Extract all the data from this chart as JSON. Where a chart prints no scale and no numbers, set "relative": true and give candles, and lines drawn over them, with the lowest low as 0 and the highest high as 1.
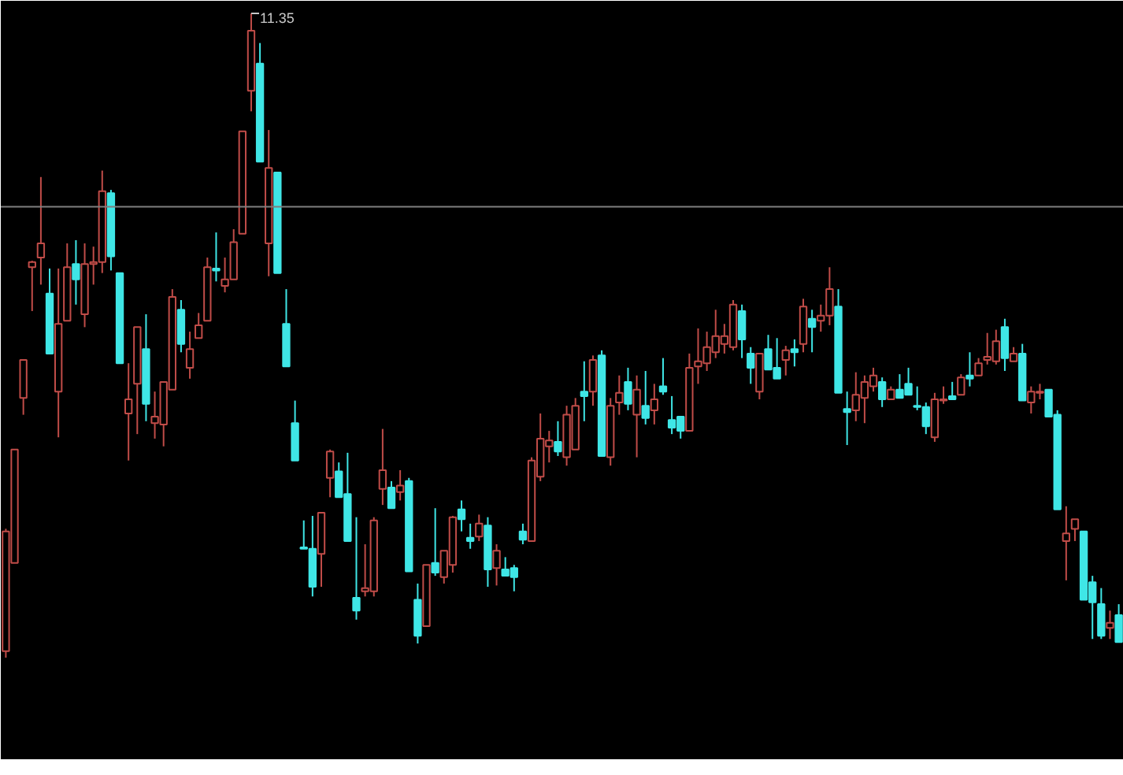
{
  "chart_data": {
    "type": "candlestick",
    "relative": true,
    "categories": [
      null,
      null,
      null,
      null,
      null,
      null,
      null,
      null,
      null,
      null,
      null,
      null,
      null,
      null,
      null,
      null,
      null,
      null,
      null,
      null,
      null,
      null,
      null,
      null,
      null,
      null,
      null,
      null,
      null,
      null,
      null,
      null,
      null,
      null,
      null,
      null,
      null,
      null,
      null,
      null,
      null,
      null,
      null,
      null,
      null,
      null,
      null,
      null,
      null,
      null,
      null,
      null,
      null,
      null,
      null,
      null,
      null,
      null,
      null,
      null,
      null,
      null,
      null,
      null,
      null,
      null,
      null,
      null,
      null,
      null,
      null,
      null,
      null,
      null,
      null,
      null,
      null,
      null,
      null,
      null,
      null,
      null,
      null,
      null,
      null,
      null,
      null,
      null,
      null,
      null,
      null,
      null,
      null,
      null,
      null,
      null,
      null,
      null,
      null,
      null,
      null,
      null,
      null,
      null,
      null,
      null,
      null,
      null,
      null,
      null,
      null,
      null,
      null,
      null,
      null,
      null,
      null,
      null,
      null,
      null,
      null,
      null,
      null,
      null,
      null,
      null,
      null,
      null
    ],
    "ohlc": [
      [
        0.01,
        0.2,
        0.0,
        0.196
      ],
      [
        0.147,
        0.323,
        0.147,
        0.323
      ],
      [
        0.403,
        0.462,
        0.377,
        0.462
      ],
      [
        0.606,
        0.616,
        0.538,
        0.614
      ],
      [
        0.621,
        0.746,
        0.579,
        0.643
      ],
      [
        0.565,
        0.604,
        0.472,
        0.472
      ],
      [
        0.413,
        0.604,
        0.342,
        0.518
      ],
      [
        0.523,
        0.643,
        0.523,
        0.606
      ],
      [
        0.611,
        0.648,
        0.548,
        0.587
      ],
      [
        0.533,
        0.643,
        0.513,
        0.611
      ],
      [
        0.611,
        0.638,
        0.579,
        0.614
      ],
      [
        0.614,
        0.756,
        0.597,
        0.724
      ],
      [
        0.721,
        0.726,
        0.601,
        0.623
      ],
      [
        0.597,
        0.597,
        0.457,
        0.457
      ],
      [
        0.379,
        0.457,
        0.306,
        0.401
      ],
      [
        0.425,
        0.513,
        0.347,
        0.513
      ],
      [
        0.479,
        0.533,
        0.367,
        0.394
      ],
      [
        0.364,
        0.413,
        0.34,
        0.374
      ],
      [
        0.362,
        0.428,
        0.328,
        0.428
      ],
      [
        0.416,
        0.572,
        0.416,
        0.56
      ],
      [
        0.54,
        0.555,
        0.474,
        0.487
      ],
      [
        0.45,
        0.506,
        0.433,
        0.479
      ],
      [
        0.496,
        0.535,
        0.496,
        0.516
      ],
      [
        0.523,
        0.621,
        0.523,
        0.606
      ],
      [
        0.604,
        0.66,
        0.584,
        0.601
      ],
      [
        0.577,
        0.621,
        0.567,
        0.587
      ],
      [
        0.587,
        0.665,
        0.587,
        0.645
      ],
      [
        0.658,
        0.817,
        0.658,
        0.817
      ],
      [
        0.88,
        1.0,
        0.848,
        0.973
      ],
      [
        0.922,
        0.954,
        0.77,
        0.77
      ],
      [
        0.643,
        0.819,
        0.592,
        0.76
      ],
      [
        0.753,
        0.753,
        0.597,
        0.597
      ],
      [
        0.518,
        0.572,
        0.452,
        0.452
      ],
      [
        0.364,
        0.399,
        0.306,
        0.306
      ],
      [
        0.171,
        0.213,
        0.169,
        0.169
      ],
      [
        0.169,
        0.22,
        0.095,
        0.11
      ],
      [
        0.161,
        0.225,
        0.11,
        0.225
      ],
      [
        0.279,
        0.323,
        0.249,
        0.32
      ],
      [
        0.289,
        0.303,
        0.249,
        0.249
      ],
      [
        0.254,
        0.318,
        0.181,
        0.181
      ],
      [
        0.093,
        0.218,
        0.059,
        0.073
      ],
      [
        0.103,
        0.176,
        0.095,
        0.108
      ],
      [
        0.103,
        0.218,
        0.095,
        0.213
      ],
      [
        0.262,
        0.355,
        0.237,
        0.291
      ],
      [
        0.264,
        0.274,
        0.232,
        0.232
      ],
      [
        0.257,
        0.291,
        0.244,
        0.267
      ],
      [
        0.274,
        0.279,
        0.134,
        0.134
      ],
      [
        0.09,
        0.115,
        0.022,
        0.034
      ],
      [
        0.049,
        0.144,
        0.049,
        0.144
      ],
      [
        0.147,
        0.232,
        0.127,
        0.132
      ],
      [
        0.125,
        0.166,
        0.115,
        0.166
      ],
      [
        0.144,
        0.22,
        0.132,
        0.218
      ],
      [
        0.23,
        0.244,
        0.196,
        0.215
      ],
      [
        0.186,
        0.208,
        0.169,
        0.181
      ],
      [
        0.188,
        0.222,
        0.181,
        0.208
      ],
      [
        0.205,
        0.218,
        0.11,
        0.137
      ],
      [
        0.139,
        0.176,
        0.112,
        0.166
      ],
      [
        0.137,
        0.156,
        0.127,
        0.127
      ],
      [
        0.139,
        0.144,
        0.103,
        0.125
      ],
      [
        0.196,
        0.208,
        0.176,
        0.183
      ],
      [
        0.181,
        0.311,
        0.181,
        0.306
      ],
      [
        0.281,
        0.379,
        0.274,
        0.34
      ],
      [
        0.328,
        0.352,
        0.303,
        0.337
      ],
      [
        0.335,
        0.367,
        0.313,
        0.32
      ],
      [
        0.311,
        0.391,
        0.298,
        0.377
      ],
      [
        0.323,
        0.403,
        0.323,
        0.391
      ],
      [
        0.413,
        0.46,
        0.367,
        0.406
      ],
      [
        0.413,
        0.469,
        0.391,
        0.462
      ],
      [
        0.469,
        0.477,
        0.313,
        0.313
      ],
      [
        0.311,
        0.403,
        0.298,
        0.391
      ],
      [
        0.396,
        0.438,
        0.377,
        0.411
      ],
      [
        0.428,
        0.45,
        0.384,
        0.394
      ],
      [
        0.377,
        0.438,
        0.311,
        0.416
      ],
      [
        0.391,
        0.445,
        0.362,
        0.372
      ],
      [
        0.384,
        0.425,
        0.362,
        0.401
      ],
      [
        0.421,
        0.465,
        0.408,
        0.413
      ],
      [
        0.369,
        0.406,
        0.347,
        0.357
      ],
      [
        0.374,
        0.374,
        0.34,
        0.352
      ],
      [
        0.352,
        0.472,
        0.352,
        0.45
      ],
      [
        0.452,
        0.511,
        0.425,
        0.46
      ],
      [
        0.457,
        0.506,
        0.445,
        0.482
      ],
      [
        0.474,
        0.54,
        0.465,
        0.499
      ],
      [
        0.487,
        0.518,
        0.472,
        0.499
      ],
      [
        0.482,
        0.555,
        0.477,
        0.548
      ],
      [
        0.538,
        0.548,
        0.465,
        0.494
      ],
      [
        0.472,
        0.482,
        0.425,
        0.45
      ],
      [
        0.413,
        0.472,
        0.401,
        0.472
      ],
      [
        0.479,
        0.501,
        0.447,
        0.447
      ],
      [
        0.45,
        0.496,
        0.433,
        0.433
      ],
      [
        0.462,
        0.484,
        0.438,
        0.477
      ],
      [
        0.479,
        0.494,
        0.452,
        0.474
      ],
      [
        0.487,
        0.557,
        0.474,
        0.545
      ],
      [
        0.526,
        0.54,
        0.474,
        0.513
      ],
      [
        0.523,
        0.548,
        0.506,
        0.531
      ],
      [
        0.531,
        0.606,
        0.516,
        0.572
      ],
      [
        0.545,
        0.572,
        0.411,
        0.411
      ],
      [
        0.386,
        0.413,
        0.33,
        0.381
      ],
      [
        0.384,
        0.443,
        0.367,
        0.408
      ],
      [
        0.403,
        0.438,
        0.364,
        0.428
      ],
      [
        0.421,
        0.45,
        0.413,
        0.438
      ],
      [
        0.428,
        0.435,
        0.389,
        0.401
      ],
      [
        0.401,
        0.421,
        0.401,
        0.416
      ],
      [
        0.416,
        0.44,
        0.403,
        0.403
      ],
      [
        0.425,
        0.45,
        0.408,
        0.408
      ],
      [
        0.391,
        0.421,
        0.384,
        0.389
      ],
      [
        0.389,
        0.396,
        0.347,
        0.359
      ],
      [
        0.342,
        0.411,
        0.335,
        0.401
      ],
      [
        0.399,
        0.421,
        0.394,
        0.401
      ],
      [
        0.406,
        0.428,
        0.401,
        0.401
      ],
      [
        0.408,
        0.44,
        0.408,
        0.435
      ],
      [
        0.438,
        0.474,
        0.421,
        0.433
      ],
      [
        0.438,
        0.465,
        0.438,
        0.457
      ],
      [
        0.462,
        0.504,
        0.455,
        0.467
      ],
      [
        0.46,
        0.509,
        0.455,
        0.491
      ],
      [
        0.513,
        0.526,
        0.445,
        0.465
      ],
      [
        0.46,
        0.482,
        0.46,
        0.472
      ],
      [
        0.472,
        0.487,
        0.399,
        0.399
      ],
      [
        0.396,
        0.421,
        0.379,
        0.413
      ],
      [
        0.411,
        0.425,
        0.401,
        0.413
      ],
      [
        0.416,
        0.416,
        0.374,
        0.374
      ],
      [
        0.377,
        0.384,
        0.23,
        0.23
      ],
      [
        0.181,
        0.235,
        0.12,
        0.193
      ],
      [
        0.2,
        0.215,
        0.181,
        0.215
      ],
      [
        0.196,
        0.196,
        0.09,
        0.09
      ],
      [
        0.117,
        0.127,
        0.029,
        0.086
      ],
      [
        0.083,
        0.108,
        0.029,
        0.034
      ],
      [
        0.046,
        0.073,
        0.029,
        0.054
      ],
      [
        0.066,
        0.083,
        0.024,
        0.024
      ]
    ],
    "colors": [
      "#c04c48",
      "#c04c48",
      "#c04c48",
      "#c04c48",
      "#c04c48",
      "#3fe6e6",
      "#c04c48",
      "#c04c48",
      "#3fe6e6",
      "#c04c48",
      "#c04c48",
      "#c04c48",
      "#3fe6e6",
      "#3fe6e6",
      "#c04c48",
      "#c04c48",
      "#3fe6e6",
      "#c04c48",
      "#c04c48",
      "#c04c48",
      "#3fe6e6",
      "#c04c48",
      "#c04c48",
      "#c04c48",
      "#3fe6e6",
      "#c04c48",
      "#c04c48",
      "#c04c48",
      "#c04c48",
      "#3fe6e6",
      "#c04c48",
      "#3fe6e6",
      "#3fe6e6",
      "#3fe6e6",
      "#3fe6e6",
      "#3fe6e6",
      "#c04c48",
      "#c04c48",
      "#3fe6e6",
      "#3fe6e6",
      "#3fe6e6",
      "#c04c48",
      "#c04c48",
      "#c04c48",
      "#3fe6e6",
      "#c04c48",
      "#3fe6e6",
      "#3fe6e6",
      "#c04c48",
      "#3fe6e6",
      "#c04c48",
      "#c04c48",
      "#3fe6e6",
      "#3fe6e6",
      "#c04c48",
      "#3fe6e6",
      "#c04c48",
      "#3fe6e6",
      "#3fe6e6",
      "#3fe6e6",
      "#c04c48",
      "#c04c48",
      "#c04c48",
      "#3fe6e6",
      "#c04c48",
      "#c04c48",
      "#3fe6e6",
      "#c04c48",
      "#3fe6e6",
      "#c04c48",
      "#c04c48",
      "#3fe6e6",
      "#c04c48",
      "#3fe6e6",
      "#c04c48",
      "#3fe6e6",
      "#3fe6e6",
      "#3fe6e6",
      "#c04c48",
      "#c04c48",
      "#c04c48",
      "#c04c48",
      "#c04c48",
      "#c04c48",
      "#3fe6e6",
      "#3fe6e6",
      "#c04c48",
      "#3fe6e6",
      "#3fe6e6",
      "#c04c48",
      "#3fe6e6",
      "#c04c48",
      "#3fe6e6",
      "#c04c48",
      "#c04c48",
      "#3fe6e6",
      "#3fe6e6",
      "#c04c48",
      "#c04c48",
      "#c04c48",
      "#3fe6e6",
      "#c04c48",
      "#3fe6e6",
      "#3fe6e6",
      "#3fe6e6",
      "#3fe6e6",
      "#c04c48",
      "#c04c48",
      "#3fe6e6",
      "#c04c48",
      "#3fe6e6",
      "#c04c48",
      "#c04c48",
      "#c04c48",
      "#3fe6e6",
      "#c04c48",
      "#3fe6e6",
      "#c04c48",
      "#c04c48",
      "#3fe6e6",
      "#3fe6e6",
      "#c04c48",
      "#c04c48",
      "#3fe6e6",
      "#3fe6e6",
      "#3fe6e6",
      "#c04c48",
      "#3fe6e6"
    ],
    "annotations": [
      "11.35"
    ],
    "ref_lines": [
      {
        "axis": "y",
        "value": 0.7,
        "color": "#7f7f7f"
      }
    ]
  }
}
